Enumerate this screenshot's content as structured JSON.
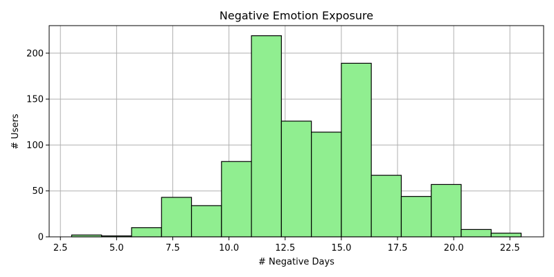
{
  "chart_data": {
    "type": "bar",
    "title": "Negative Emotion Exposure",
    "xlabel": "# Negative Days",
    "ylabel": "# Users",
    "bin_edges": [
      3.0,
      4.333,
      5.667,
      7.0,
      8.333,
      9.667,
      11.0,
      12.333,
      13.667,
      15.0,
      16.333,
      17.667,
      19.0,
      20.333,
      21.667,
      23.0
    ],
    "values": [
      2,
      1,
      10,
      43,
      34,
      82,
      219,
      126,
      114,
      189,
      67,
      44,
      57,
      8,
      4
    ],
    "xlim": [
      2.0,
      24.0
    ],
    "ylim": [
      0,
      230
    ],
    "xticks": [
      2.5,
      5.0,
      7.5,
      10.0,
      12.5,
      15.0,
      17.5,
      20.0,
      22.5
    ],
    "xtick_labels": [
      "2.5",
      "5.0",
      "7.5",
      "10.0",
      "12.5",
      "15.0",
      "17.5",
      "20.0",
      "22.5"
    ],
    "yticks": [
      0,
      50,
      100,
      150,
      200
    ],
    "ytick_labels": [
      "0",
      "50",
      "100",
      "150",
      "200"
    ],
    "grid": true,
    "bar_color": "#90ee90",
    "edge_color": "#000000"
  }
}
